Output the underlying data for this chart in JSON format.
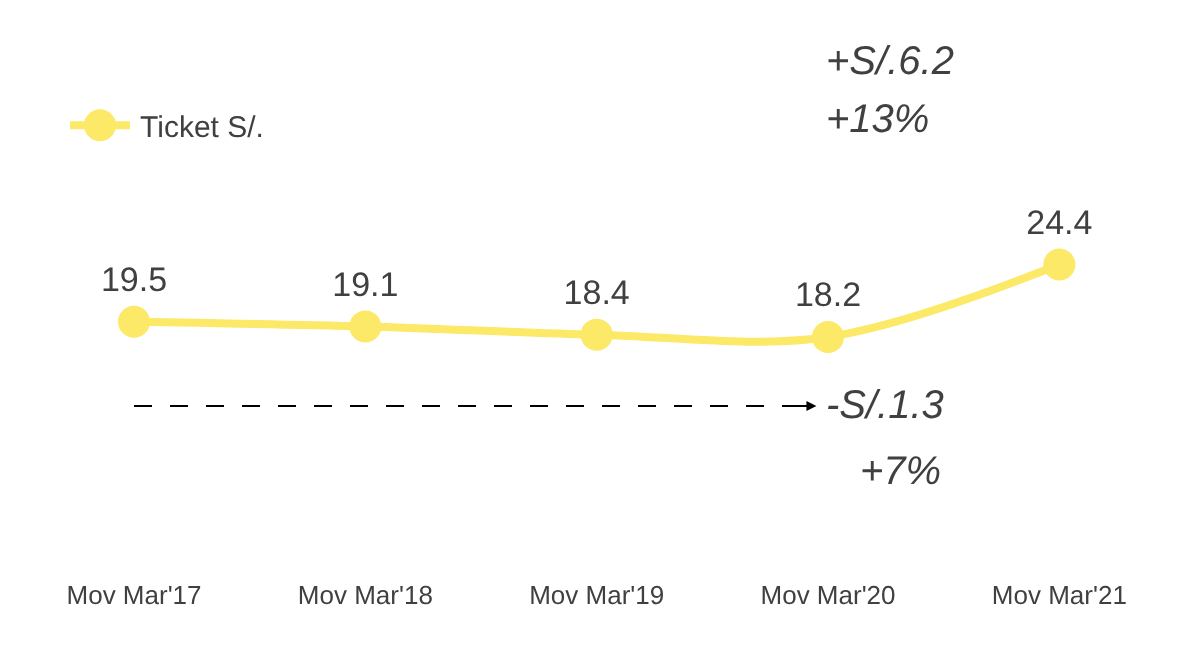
{
  "chart_data": {
    "type": "line",
    "categories": [
      "Mov Mar'17",
      "Mov Mar'18",
      "Mov Mar'19",
      "Mov Mar'20",
      "Mov Mar'21"
    ],
    "series": [
      {
        "name": "Ticket S/.",
        "color": "#fbe967",
        "values": [
          19.5,
          19.1,
          18.4,
          18.2,
          24.4
        ]
      }
    ],
    "data_labels": true,
    "marker": "circle",
    "line_style": "solid",
    "legend": "top left",
    "annotations": [
      "+S/.6.2",
      "+13%",
      "-S/.1.3",
      "+7%"
    ]
  }
}
